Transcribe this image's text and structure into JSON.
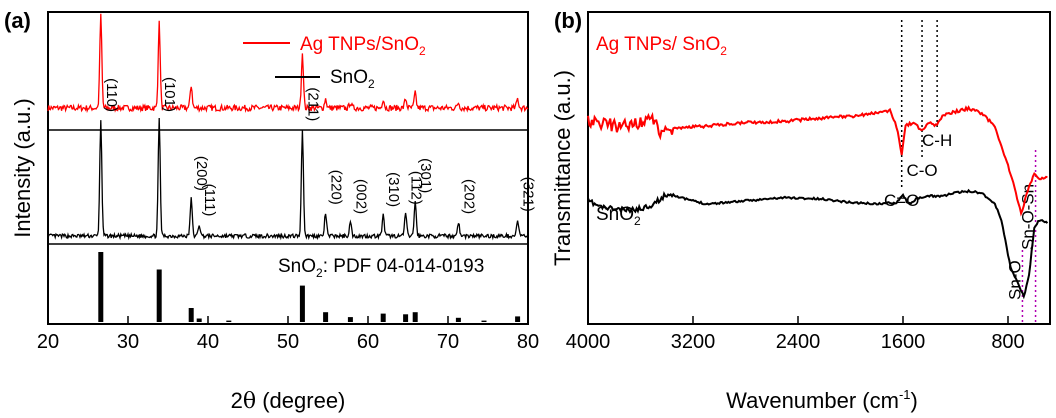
{
  "chart_data": [
    {
      "panel_label": "(a)",
      "type": "line",
      "xlabel_main": "2",
      "xlabel_theta": "θ",
      "xlabel_rest": " (degree)",
      "ylabel": "Intensity (a.u.)",
      "xlim": [
        20,
        80
      ],
      "xticks": [
        "20",
        "30",
        "40",
        "50",
        "60",
        "70",
        "80"
      ],
      "series": [
        {
          "name": "Ag TNPs/SnO",
          "name_sub": "2",
          "color": "#ff0000",
          "peaks": [
            [
              26.6,
              1.0
            ],
            [
              33.9,
              0.92
            ],
            [
              37.9,
              0.25
            ],
            [
              51.8,
              0.6
            ],
            [
              54.7,
              0.1
            ],
            [
              57.8,
              0.06
            ],
            [
              61.9,
              0.1
            ],
            [
              64.7,
              0.1
            ],
            [
              65.9,
              0.16
            ],
            [
              71.3,
              0.06
            ],
            [
              78.7,
              0.1
            ]
          ]
        },
        {
          "name": "SnO",
          "name_sub": "2",
          "color": "#000000",
          "peaks": [
            [
              26.6,
              1.0
            ],
            [
              33.9,
              1.0
            ],
            [
              37.9,
              0.32
            ],
            [
              38.9,
              0.1
            ],
            [
              51.8,
              0.92
            ],
            [
              54.7,
              0.2
            ],
            [
              57.8,
              0.12
            ],
            [
              61.9,
              0.18
            ],
            [
              64.7,
              0.2
            ],
            [
              65.9,
              0.3
            ],
            [
              71.3,
              0.12
            ],
            [
              78.7,
              0.14
            ]
          ]
        }
      ],
      "miller_indices": [
        {
          "label": "(110)",
          "x": 26.6
        },
        {
          "label": "(101)",
          "x": 33.9
        },
        {
          "label": "(200)",
          "x": 37.9
        },
        {
          "label": "(111)",
          "x": 38.9
        },
        {
          "label": "(211)",
          "x": 51.8
        },
        {
          "label": "(220)",
          "x": 54.7
        },
        {
          "label": "(002)",
          "x": 57.8
        },
        {
          "label": "(310)",
          "x": 61.9
        },
        {
          "label": "(112)",
          "x": 64.7
        },
        {
          "label": "(301)",
          "x": 65.9
        },
        {
          "label": "(202)",
          "x": 71.3
        },
        {
          "label": "(321)",
          "x": 78.7
        }
      ],
      "reference": {
        "label_pre": "SnO",
        "label_sub": "2",
        "label_post": ": PDF 04-014-0193",
        "color": "#000000",
        "sticks": [
          [
            26.6,
            1.0
          ],
          [
            33.9,
            0.75
          ],
          [
            37.9,
            0.2
          ],
          [
            38.9,
            0.05
          ],
          [
            42.6,
            0.02
          ],
          [
            51.8,
            0.52
          ],
          [
            54.7,
            0.14
          ],
          [
            57.8,
            0.07
          ],
          [
            61.9,
            0.12
          ],
          [
            64.7,
            0.11
          ],
          [
            65.9,
            0.14
          ],
          [
            71.3,
            0.06
          ],
          [
            74.5,
            0.02
          ],
          [
            78.7,
            0.08
          ]
        ]
      }
    },
    {
      "panel_label": "(b)",
      "type": "line",
      "xlabel_main": "Wavenumber (cm",
      "xlabel_sup": "-1",
      "xlabel_end": ")",
      "ylabel": "Transmittance (a.u.)",
      "xlim": [
        4000,
        480
      ],
      "xticks": [
        "4000",
        "3200",
        "2400",
        "1600",
        "800"
      ],
      "series": [
        {
          "name": "Ag TNPs/ SnO",
          "name_sub": "2",
          "color": "#ff0000",
          "points": [
            [
              4000,
              0.62
            ],
            [
              3900,
              0.62
            ],
            [
              3800,
              0.6
            ],
            [
              3700,
              0.6
            ],
            [
              3600,
              0.63
            ],
            [
              3500,
              0.64
            ],
            [
              3450,
              0.56
            ],
            [
              3400,
              0.58
            ],
            [
              3300,
              0.59
            ],
            [
              3100,
              0.6
            ],
            [
              2800,
              0.62
            ],
            [
              2500,
              0.63
            ],
            [
              2200,
              0.65
            ],
            [
              2000,
              0.66
            ],
            [
              1800,
              0.68
            ],
            [
              1700,
              0.7
            ],
            [
              1650,
              0.6
            ],
            [
              1610,
              0.42
            ],
            [
              1580,
              0.6
            ],
            [
              1530,
              0.62
            ],
            [
              1450,
              0.57
            ],
            [
              1400,
              0.62
            ],
            [
              1340,
              0.6
            ],
            [
              1300,
              0.67
            ],
            [
              1200,
              0.69
            ],
            [
              1100,
              0.71
            ],
            [
              1000,
              0.68
            ],
            [
              900,
              0.6
            ],
            [
              820,
              0.4
            ],
            [
              760,
              0.25
            ],
            [
              700,
              0.05
            ],
            [
              650,
              0.2
            ],
            [
              600,
              0.3
            ],
            [
              560,
              0.27
            ],
            [
              500,
              0.28
            ]
          ]
        },
        {
          "name": "SnO",
          "name_sub": "2",
          "color": "#000000",
          "points": [
            [
              4000,
              0.62
            ],
            [
              3900,
              0.58
            ],
            [
              3800,
              0.57
            ],
            [
              3700,
              0.56
            ],
            [
              3600,
              0.57
            ],
            [
              3500,
              0.6
            ],
            [
              3400,
              0.66
            ],
            [
              3350,
              0.66
            ],
            [
              3300,
              0.64
            ],
            [
              3100,
              0.6
            ],
            [
              2800,
              0.62
            ],
            [
              2500,
              0.64
            ],
            [
              2200,
              0.63
            ],
            [
              2000,
              0.61
            ],
            [
              1800,
              0.6
            ],
            [
              1650,
              0.61
            ],
            [
              1600,
              0.66
            ],
            [
              1560,
              0.6
            ],
            [
              1500,
              0.63
            ],
            [
              1400,
              0.65
            ],
            [
              1300,
              0.65
            ],
            [
              1200,
              0.67
            ],
            [
              1100,
              0.68
            ],
            [
              1000,
              0.67
            ],
            [
              900,
              0.6
            ],
            [
              850,
              0.5
            ],
            [
              780,
              0.2
            ],
            [
              720,
              0.1
            ],
            [
              680,
              0.02
            ],
            [
              640,
              0.15
            ],
            [
              600,
              0.45
            ],
            [
              560,
              0.5
            ],
            [
              500,
              0.48
            ]
          ]
        }
      ],
      "annotations": [
        {
          "label": "C=O",
          "x": 1610
        },
        {
          "label": "C-O",
          "x": 1455
        },
        {
          "label": "C-H",
          "x": 1340
        },
        {
          "label": "Sn-O",
          "x": 690
        },
        {
          "label": "Sn-O-Sn",
          "x": 590
        }
      ]
    }
  ]
}
